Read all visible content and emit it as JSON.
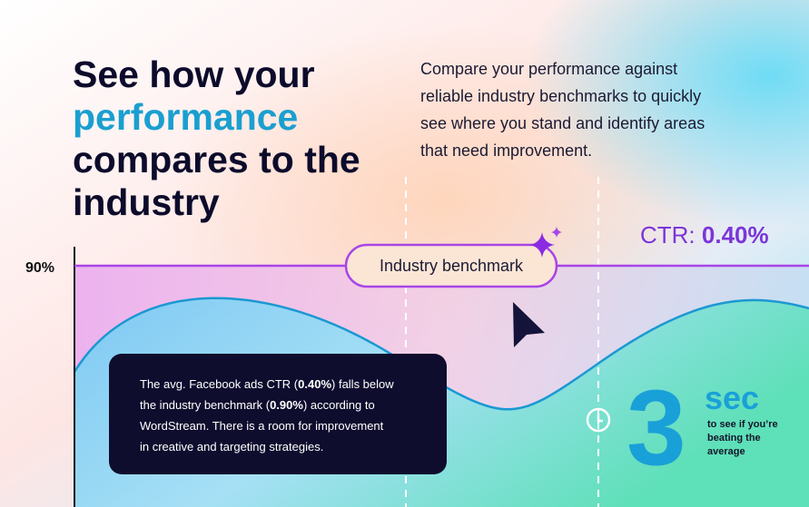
{
  "heading": {
    "lines": [
      "See how your",
      "performance",
      "compares to the",
      "industry"
    ]
  },
  "description": {
    "lines": [
      "Compare your performance against",
      "reliable industry benchmarks to quickly",
      "see where you stand and identify areas",
      "that need improvement."
    ]
  },
  "axis_label": "90%",
  "badge": "Industry benchmark",
  "ctr": {
    "label": "CTR: ",
    "value": "0.40%"
  },
  "card": {
    "lines": [
      [
        "The avg. Facebook ads CTR (",
        "0.40%",
        ") falls below"
      ],
      [
        "the industry benchmark (",
        "0.90%",
        ") according to"
      ],
      [
        "WordStream. There is a room for improvement"
      ],
      [
        "in creative and targeting strategies."
      ]
    ]
  },
  "timer": {
    "number": "3",
    "unit": "sec",
    "caption": [
      "to see if you’re",
      "beating the",
      "average"
    ]
  }
}
